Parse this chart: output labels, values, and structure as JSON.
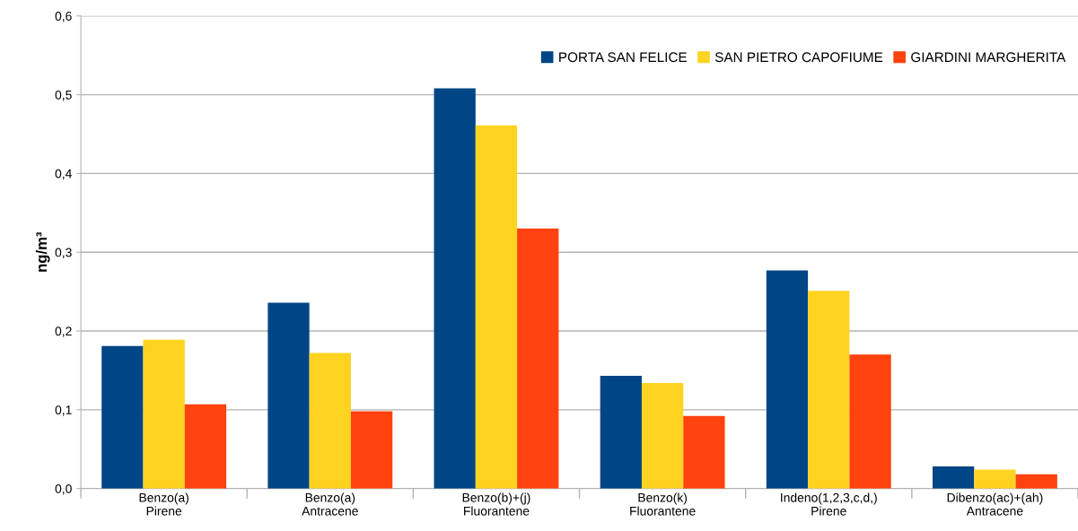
{
  "chart_data": {
    "type": "bar",
    "ylabel": "ng/m³",
    "categories": [
      "Benzo(a)\nPirene",
      "Benzo(a)\nAntracene",
      "Benzo(b)+(j)\nFluorantene",
      "Benzo(k)\nFluorantene",
      "Indeno(1,2,3,c,d,)\nPirene",
      "Dibenzo(ac)+(ah)\nAntracene"
    ],
    "series": [
      {
        "name": "PORTA SAN FELICE",
        "color": "#004586",
        "values": [
          0.181,
          0.236,
          0.508,
          0.143,
          0.277,
          0.028
        ]
      },
      {
        "name": "SAN PIETRO CAPOFIUME",
        "color": "#ffd320",
        "values": [
          0.189,
          0.172,
          0.461,
          0.134,
          0.251,
          0.024
        ]
      },
      {
        "name": "GIARDINI MARGHERITA",
        "color": "#ff420e",
        "values": [
          0.107,
          0.098,
          0.33,
          0.092,
          0.17,
          0.018
        ]
      }
    ],
    "ylim": [
      0,
      0.6
    ],
    "yticks": [
      {
        "value": 0,
        "label": "0,0"
      },
      {
        "value": 0.1,
        "label": "0,1"
      },
      {
        "value": 0.2,
        "label": "0,2"
      },
      {
        "value": 0.3,
        "label": "0,3"
      },
      {
        "value": 0.4,
        "label": "0,4"
      },
      {
        "value": 0.5,
        "label": "0,5"
      },
      {
        "value": 0.6,
        "label": "0,6"
      }
    ],
    "grid": "y",
    "legend": "top right"
  }
}
